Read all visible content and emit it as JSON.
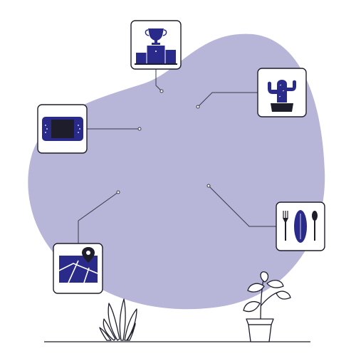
{
  "colors": {
    "blob": "#b7b6d9",
    "accent": "#2a2a8a",
    "ink": "#1d1d2b"
  },
  "icons": [
    "trophy-podium-icon",
    "cactus-icon",
    "handheld-console-icon",
    "cutlery-plate-icon",
    "map-location-icon",
    "grass-plant-icon",
    "potted-plant-icon"
  ]
}
